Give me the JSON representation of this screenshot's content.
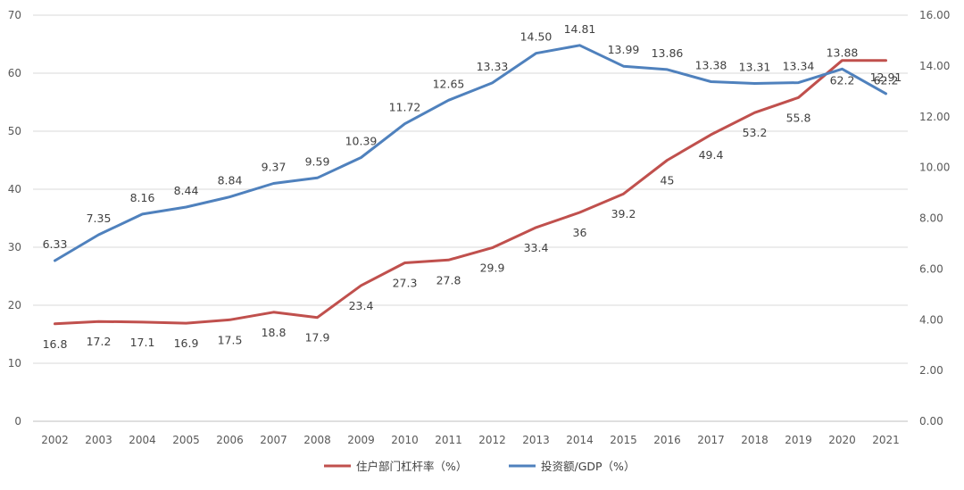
{
  "chart_data": {
    "type": "line",
    "title": "",
    "x": [
      "2002",
      "2003",
      "2004",
      "2005",
      "2006",
      "2007",
      "2008",
      "2009",
      "2010",
      "2011",
      "2012",
      "2013",
      "2014",
      "2015",
      "2016",
      "2017",
      "2018",
      "2019",
      "2020",
      "2021"
    ],
    "y_left": {
      "ticks": [
        "0",
        "10",
        "20",
        "30",
        "40",
        "50",
        "60",
        "70"
      ],
      "lim": [
        0,
        70
      ]
    },
    "y_right": {
      "ticks": [
        "0.00",
        "2.00",
        "4.00",
        "6.00",
        "8.00",
        "10.00",
        "12.00",
        "14.00",
        "16.00"
      ],
      "lim": [
        0,
        16
      ]
    },
    "grid": true,
    "legend_position": "bottom",
    "series": [
      {
        "name": "住户部门杠杆率（%）",
        "axis": "left",
        "color": "#C0504D",
        "values": [
          16.8,
          17.2,
          17.1,
          16.9,
          17.5,
          18.8,
          17.9,
          23.4,
          27.3,
          27.8,
          29.9,
          33.4,
          36,
          39.2,
          45,
          49.4,
          53.2,
          55.8,
          62.2,
          62.2
        ],
        "labels": [
          "16.8",
          "17.2",
          "17.1",
          "16.9",
          "17.5",
          "18.8",
          "17.9",
          "23.4",
          "27.3",
          "27.8",
          "29.9",
          "33.4",
          "36",
          "39.2",
          "45",
          "49.4",
          "53.2",
          "55.8",
          "62.2",
          "62.2"
        ]
      },
      {
        "name": "投资额/GDP（%）",
        "axis": "right",
        "color": "#4F81BD",
        "values": [
          6.33,
          7.35,
          8.16,
          8.44,
          8.84,
          9.37,
          9.59,
          10.39,
          11.72,
          12.65,
          13.33,
          14.5,
          14.81,
          13.99,
          13.86,
          13.38,
          13.31,
          13.34,
          13.88,
          12.91
        ],
        "labels": [
          "6.33",
          "7.35",
          "8.16",
          "8.44",
          "8.84",
          "9.37",
          "9.59",
          "10.39",
          "11.72",
          "12.65",
          "13.33",
          "14.50",
          "14.81",
          "13.99",
          "13.86",
          "13.38",
          "13.31",
          "13.34",
          "13.88",
          "12.91"
        ]
      }
    ]
  }
}
